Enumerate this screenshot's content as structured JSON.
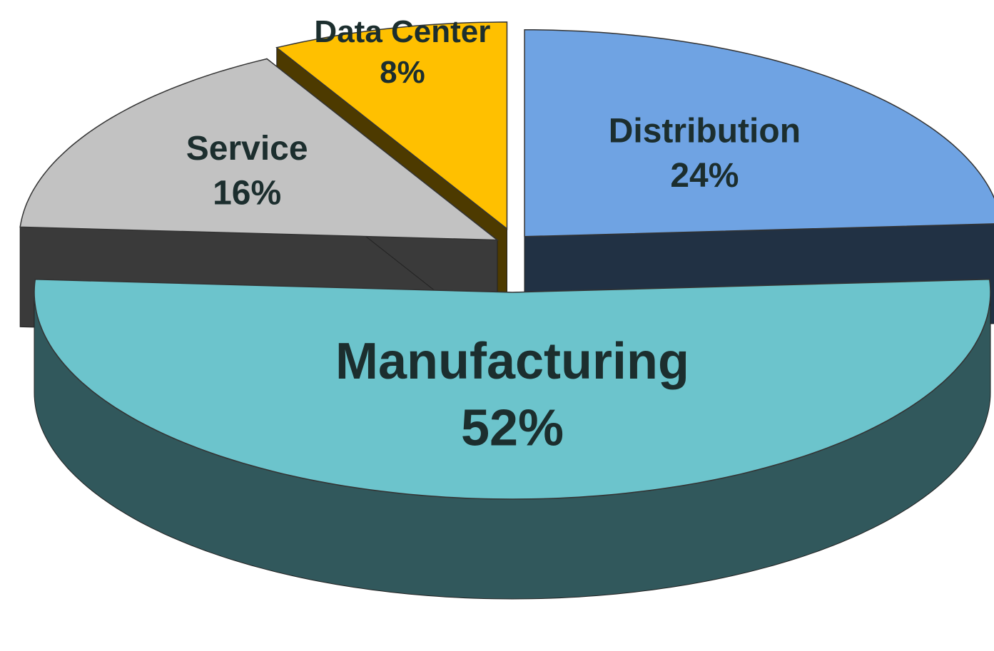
{
  "chart_data": {
    "type": "pie",
    "categories": [
      "Distribution",
      "Manufacturing",
      "Service",
      "Data Center"
    ],
    "values": [
      24,
      52,
      16,
      8
    ],
    "value_labels": [
      "24%",
      "52%",
      "16%",
      "8%"
    ],
    "colors": [
      "#6fa3e3",
      "#6cc4cc",
      "#c2c2c2",
      "#ffc000"
    ]
  }
}
